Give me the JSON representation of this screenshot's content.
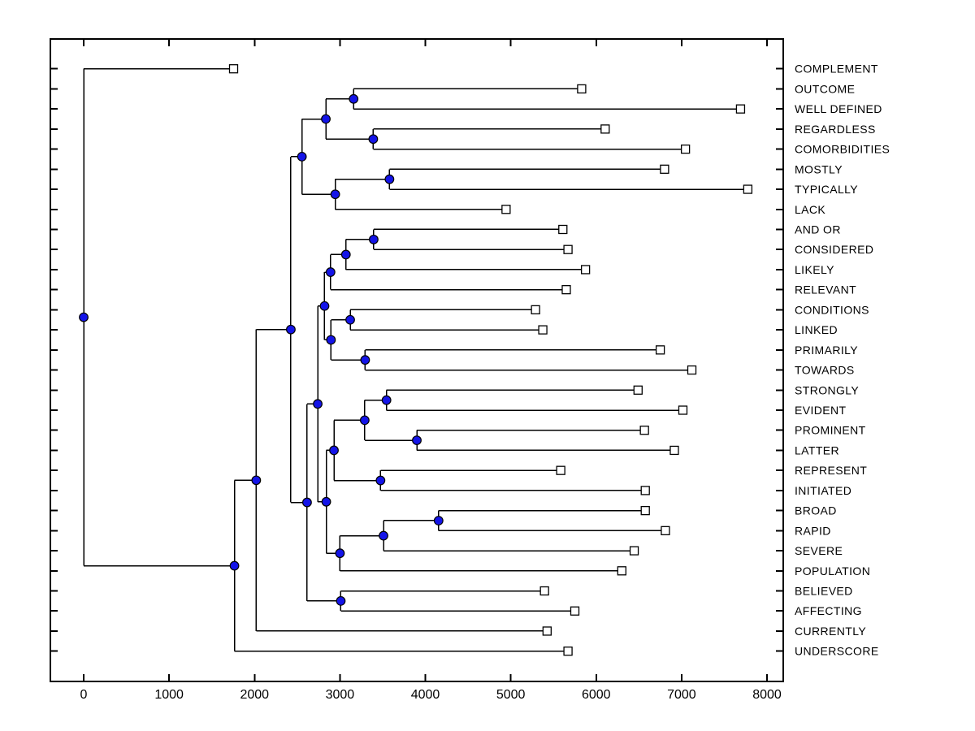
{
  "figure": {
    "background": "#ffffff"
  },
  "chart_data": {
    "type": "dendrogram",
    "orientation": "horizontal_right_labels",
    "title": "",
    "xlabel": "",
    "ylabel": "",
    "grid": false,
    "x_axis": {
      "xlim": [
        -390,
        8190
      ],
      "ticks": [
        0,
        1000,
        2000,
        3000,
        4000,
        5000,
        6000,
        7000,
        8000
      ],
      "tick_labels": [
        "0",
        "1000",
        "2000",
        "3000",
        "4000",
        "5000",
        "6000",
        "7000",
        "8000"
      ]
    },
    "leaves": [
      {
        "label": "COMPLEMENT",
        "x": 1755
      },
      {
        "label": "OUTCOME",
        "x": 5830
      },
      {
        "label": "WELL DEFINED",
        "x": 7690
      },
      {
        "label": "REGARDLESS",
        "x": 6105
      },
      {
        "label": "COMORBIDITIES",
        "x": 7045
      },
      {
        "label": "MOSTLY",
        "x": 6800
      },
      {
        "label": "TYPICALLY",
        "x": 7775
      },
      {
        "label": "LACK",
        "x": 4945
      },
      {
        "label": "AND OR",
        "x": 5610
      },
      {
        "label": "CONSIDERED",
        "x": 5670
      },
      {
        "label": "LIKELY",
        "x": 5875
      },
      {
        "label": "RELEVANT",
        "x": 5650
      },
      {
        "label": "CONDITIONS",
        "x": 5290
      },
      {
        "label": "LINKED",
        "x": 5375
      },
      {
        "label": "PRIMARILY",
        "x": 6750
      },
      {
        "label": "TOWARDS",
        "x": 7120
      },
      {
        "label": "STRONGLY",
        "x": 6490
      },
      {
        "label": "EVIDENT",
        "x": 7015
      },
      {
        "label": "PROMINENT",
        "x": 6565
      },
      {
        "label": "LATTER",
        "x": 6915
      },
      {
        "label": "REPRESENT",
        "x": 5585
      },
      {
        "label": "INITIATED",
        "x": 6575
      },
      {
        "label": "BROAD",
        "x": 6575
      },
      {
        "label": "RAPID",
        "x": 6810
      },
      {
        "label": "SEVERE",
        "x": 6445
      },
      {
        "label": "POPULATION",
        "x": 6300
      },
      {
        "label": "BELIEVED",
        "x": 5395
      },
      {
        "label": "AFFECTING",
        "x": 5750
      },
      {
        "label": "CURRENTLY",
        "x": 5425
      },
      {
        "label": "UNDERSCORE",
        "x": 5670
      }
    ],
    "merges": [
      {
        "children": [
          "L1",
          "L2"
        ],
        "x": 3160
      },
      {
        "children": [
          "L3",
          "L4"
        ],
        "x": 3390
      },
      {
        "children": [
          "N0",
          "N1"
        ],
        "x": 2835
      },
      {
        "children": [
          "L5",
          "L6"
        ],
        "x": 3580
      },
      {
        "children": [
          "N3",
          "L7"
        ],
        "x": 2945
      },
      {
        "children": [
          "N2",
          "N4"
        ],
        "x": 2555
      },
      {
        "children": [
          "L8",
          "L9"
        ],
        "x": 3395
      },
      {
        "children": [
          "N6",
          "L10"
        ],
        "x": 3070
      },
      {
        "children": [
          "N7",
          "L11"
        ],
        "x": 2890
      },
      {
        "children": [
          "L12",
          "L13"
        ],
        "x": 3120
      },
      {
        "children": [
          "L14",
          "L15"
        ],
        "x": 3295
      },
      {
        "children": [
          "N9",
          "N10"
        ],
        "x": 2895
      },
      {
        "children": [
          "N8",
          "N11"
        ],
        "x": 2820
      },
      {
        "children": [
          "L16",
          "L17"
        ],
        "x": 3545
      },
      {
        "children": [
          "L18",
          "L19"
        ],
        "x": 3900
      },
      {
        "children": [
          "N13",
          "N14"
        ],
        "x": 3290
      },
      {
        "children": [
          "L20",
          "L21"
        ],
        "x": 3475
      },
      {
        "children": [
          "N15",
          "N16"
        ],
        "x": 2930
      },
      {
        "children": [
          "L22",
          "L23"
        ],
        "x": 4155
      },
      {
        "children": [
          "N18",
          "L24"
        ],
        "x": 3510
      },
      {
        "children": [
          "N19",
          "L25"
        ],
        "x": 3000
      },
      {
        "children": [
          "N17",
          "N20"
        ],
        "x": 2840
      },
      {
        "children": [
          "N12",
          "N21"
        ],
        "x": 2740
      },
      {
        "children": [
          "L26",
          "L27"
        ],
        "x": 3010
      },
      {
        "children": [
          "N22",
          "N23"
        ],
        "x": 2615
      },
      {
        "children": [
          "N5",
          "N24"
        ],
        "x": 2425
      },
      {
        "children": [
          "N25",
          "L28"
        ],
        "x": 2020
      },
      {
        "children": [
          "N26",
          "L29"
        ],
        "x": 1765
      },
      {
        "children": [
          "L0",
          "N27"
        ],
        "x": 0
      }
    ],
    "styles": {
      "line_color": "#000000",
      "frame_color": "#000000",
      "branch_node_fill": "#1414e8",
      "branch_node_edge": "#000000",
      "leaf_node_fill": "#ffffff",
      "leaf_node_edge": "#000000",
      "label_color": "#000000",
      "background": "#ffffff"
    }
  }
}
